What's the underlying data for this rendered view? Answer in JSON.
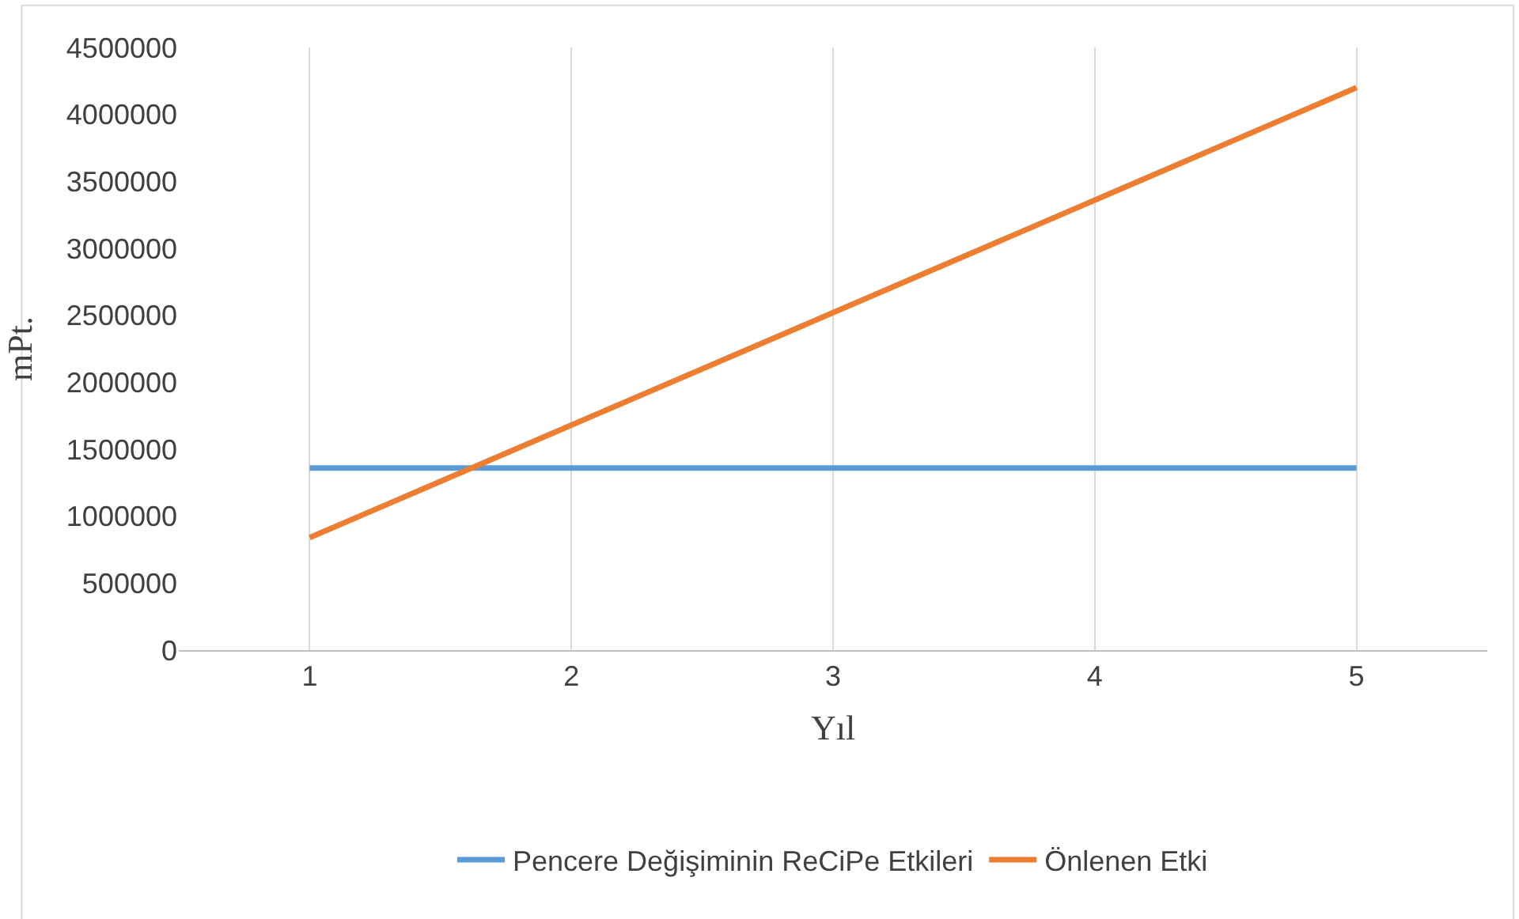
{
  "chart_data": {
    "type": "line",
    "xlabel": "Yıl",
    "ylabel": "mPt.",
    "categories": [
      "1",
      "2",
      "3",
      "4",
      "5"
    ],
    "series": [
      {
        "name": "Pencere Değişiminin ReCiPe Etkileri",
        "color": "#5b9bd5",
        "values": [
          1360000,
          1360000,
          1360000,
          1360000,
          1360000
        ]
      },
      {
        "name": "Önlenen Etki",
        "color": "#ed7d31",
        "values": [
          840000,
          1680000,
          2520000,
          3360000,
          4200000
        ]
      }
    ],
    "ylim": [
      0,
      4500000
    ],
    "yticks": [
      0,
      500000,
      1000000,
      1500000,
      2000000,
      2500000,
      3000000,
      3500000,
      4000000,
      4500000
    ],
    "grid": "x",
    "legend": "bottom",
    "marker": "none",
    "line_style": "solid"
  }
}
